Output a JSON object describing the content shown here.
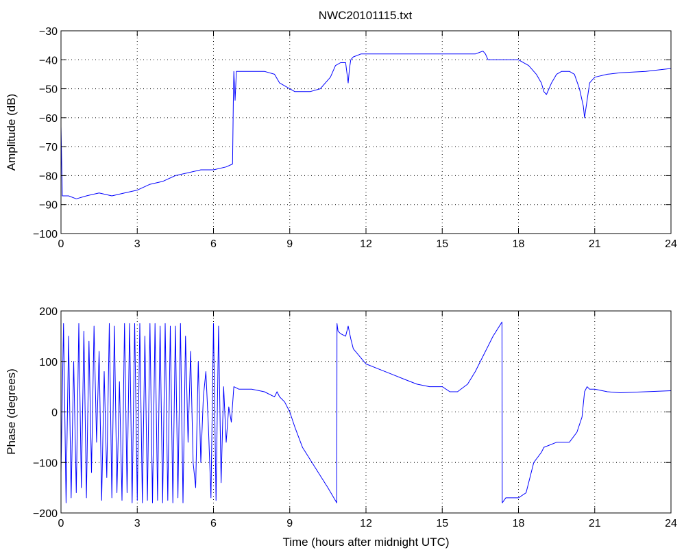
{
  "chart_data": [
    {
      "type": "line",
      "title": "NWC20101115.txt",
      "xlabel": "",
      "ylabel": "Amplitude (dB)",
      "xlim": [
        0,
        24
      ],
      "ylim": [
        -100,
        -30
      ],
      "xticks": [
        "0",
        "3",
        "6",
        "9",
        "12",
        "15",
        "18",
        "21",
        "24"
      ],
      "yticks": [
        "−30",
        "−40",
        "−50",
        "−60",
        "−70",
        "−80",
        "−90",
        "−100"
      ],
      "grid": true,
      "color": "#0000ff",
      "series": [
        {
          "x": [
            0,
            0.05,
            0.3,
            0.6,
            1.0,
            1.5,
            2.0,
            2.5,
            3.0,
            3.5,
            4.0,
            4.5,
            5.0,
            5.5,
            6.0,
            6.5,
            6.75,
            6.78,
            6.8,
            6.85,
            6.9,
            7.0,
            7.5,
            8.0,
            8.4,
            8.6,
            8.8,
            9.0,
            9.2,
            9.5,
            9.8,
            10.2,
            10.6,
            10.8,
            11.0,
            11.2,
            11.3,
            11.35,
            11.4,
            11.5,
            11.8,
            12.0,
            12.5,
            13.0,
            13.5,
            14.0,
            14.5,
            15.0,
            15.5,
            16.0,
            16.3,
            16.6,
            16.7,
            16.8,
            17.0,
            17.5,
            18.0,
            18.4,
            18.7,
            18.9,
            19.0,
            19.1,
            19.3,
            19.5,
            19.7,
            20.0,
            20.2,
            20.4,
            20.55,
            20.6,
            20.7,
            20.8,
            21.0,
            21.5,
            22.0,
            23.0,
            24.0
          ],
          "y": [
            -63,
            -87,
            -87,
            -88,
            -87,
            -86,
            -87,
            -86,
            -85,
            -83,
            -82,
            -80,
            -79,
            -78,
            -78,
            -77,
            -76,
            -55,
            -44,
            -54,
            -44,
            -44,
            -44,
            -44,
            -45,
            -48,
            -49,
            -50,
            -51,
            -51,
            -51,
            -50,
            -46,
            -42,
            -41,
            -41,
            -48,
            -43,
            -40,
            -39,
            -38,
            -38,
            -38,
            -38,
            -38,
            -38,
            -38,
            -38,
            -38,
            -38,
            -38,
            -37,
            -38,
            -40,
            -40,
            -40,
            -40,
            -42,
            -45,
            -48,
            -51,
            -52,
            -48,
            -45,
            -44,
            -44,
            -45,
            -50,
            -56,
            -60,
            -54,
            -48,
            -46,
            -45,
            -44.5,
            -44,
            -43
          ]
        }
      ]
    },
    {
      "type": "line",
      "title": "",
      "xlabel": "Time (hours after midnight UTC)",
      "ylabel": "Phase (degrees)",
      "xlim": [
        0,
        24
      ],
      "ylim": [
        -200,
        200
      ],
      "xticks": [
        "0",
        "3",
        "6",
        "9",
        "12",
        "15",
        "18",
        "21",
        "24"
      ],
      "yticks": [
        "200",
        "100",
        "0",
        "−100",
        "−200"
      ],
      "grid": true,
      "color": "#0000ff",
      "series": [
        {
          "x": [
            0,
            0.1,
            0.2,
            0.3,
            0.4,
            0.5,
            0.6,
            0.7,
            0.8,
            0.9,
            1.0,
            1.1,
            1.2,
            1.3,
            1.4,
            1.5,
            1.6,
            1.7,
            1.8,
            1.9,
            2.0,
            2.1,
            2.2,
            2.3,
            2.4,
            2.5,
            2.6,
            2.7,
            2.8,
            2.9,
            3.0,
            3.1,
            3.2,
            3.3,
            3.4,
            3.5,
            3.6,
            3.7,
            3.8,
            3.9,
            4.0,
            4.1,
            4.2,
            4.3,
            4.4,
            4.5,
            4.6,
            4.7,
            4.8,
            4.9,
            5.0,
            5.1,
            5.2,
            5.3,
            5.4,
            5.5,
            5.6,
            5.7,
            5.8,
            5.9,
            6.0,
            6.1,
            6.2,
            6.3,
            6.4,
            6.5,
            6.6,
            6.7,
            6.8,
            7.0,
            7.5,
            8.0,
            8.4,
            8.5,
            8.6,
            8.8,
            9.0,
            9.2,
            9.5,
            10.0,
            10.5,
            10.85,
            10.86,
            10.9,
            11.0,
            11.2,
            11.3,
            11.4,
            11.5,
            12.0,
            12.5,
            13.0,
            13.5,
            14.0,
            14.5,
            15.0,
            15.3,
            15.6,
            16.0,
            16.3,
            16.6,
            17.0,
            17.35,
            17.36,
            17.5,
            18.0,
            18.3,
            18.6,
            18.9,
            19.0,
            19.5,
            20.0,
            20.3,
            20.5,
            20.6,
            20.7,
            20.8,
            21.0,
            21.5,
            22.0,
            23.0,
            24.0
          ],
          "y": [
            -120,
            175,
            -180,
            150,
            -170,
            100,
            -160,
            175,
            -150,
            160,
            -170,
            140,
            -120,
            170,
            -60,
            120,
            -175,
            80,
            -130,
            175,
            -170,
            170,
            -160,
            60,
            -175,
            175,
            -160,
            175,
            -180,
            175,
            -175,
            175,
            -180,
            150,
            -175,
            175,
            -180,
            175,
            -175,
            170,
            -180,
            175,
            -175,
            170,
            -180,
            170,
            -170,
            175,
            -180,
            150,
            -60,
            120,
            -100,
            -150,
            100,
            -100,
            30,
            80,
            -30,
            -170,
            175,
            -175,
            170,
            -140,
            50,
            -60,
            10,
            -20,
            50,
            45,
            45,
            40,
            30,
            40,
            30,
            20,
            0,
            -30,
            -70,
            -110,
            -150,
            -180,
            175,
            160,
            155,
            150,
            170,
            145,
            125,
            95,
            85,
            75,
            65,
            55,
            50,
            50,
            40,
            40,
            55,
            80,
            110,
            150,
            178,
            -180,
            -170,
            -170,
            -160,
            -100,
            -80,
            -70,
            -60,
            -60,
            -40,
            -10,
            40,
            50,
            45,
            45,
            40,
            38,
            40,
            42
          ]
        }
      ]
    }
  ]
}
